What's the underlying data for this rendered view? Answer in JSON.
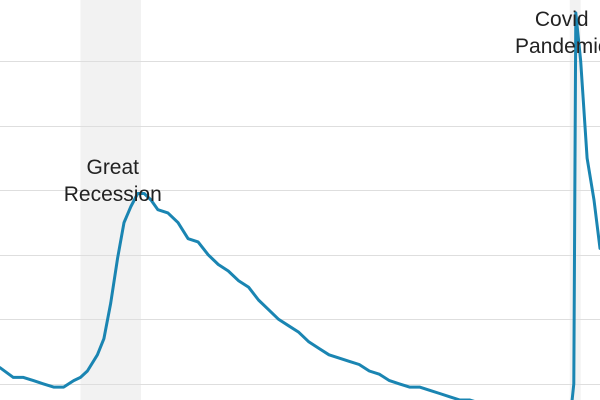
{
  "chart_data": {
    "type": "line",
    "title": "",
    "xlabel": "",
    "ylabel": "",
    "x_range": [
      2006.0,
      2020.9
    ],
    "ylim": [
      2.5,
      14.9
    ],
    "grid": true,
    "y_gridlines": [
      3,
      5,
      7,
      9,
      11,
      13,
      15
    ],
    "shaded_periods": [
      {
        "start": 2008.0,
        "end": 2009.5,
        "color": "#f2f2f2"
      },
      {
        "start": 2020.15,
        "end": 2020.42,
        "color": "#f2f2f2"
      }
    ],
    "annotations": [
      {
        "lines": [
          "Great",
          "Recession"
        ],
        "x": 2008.8,
        "y": 9.5
      },
      {
        "lines": [
          "Covid",
          "Pandemic"
        ],
        "x": 2019.95,
        "y": 14.1
      }
    ],
    "series": [
      {
        "color": "#1a85b2",
        "x": [
          2006.0,
          2006.33,
          2006.58,
          2006.83,
          2007.08,
          2007.33,
          2007.58,
          2007.83,
          2008.0,
          2008.17,
          2008.42,
          2008.58,
          2008.75,
          2008.92,
          2009.08,
          2009.25,
          2009.42,
          2009.58,
          2009.75,
          2009.92,
          2010.17,
          2010.42,
          2010.67,
          2010.92,
          2011.17,
          2011.42,
          2011.67,
          2011.92,
          2012.17,
          2012.42,
          2012.67,
          2012.92,
          2013.17,
          2013.42,
          2013.67,
          2013.92,
          2014.17,
          2014.42,
          2014.67,
          2014.92,
          2015.17,
          2015.42,
          2015.67,
          2015.92,
          2016.17,
          2016.42,
          2016.67,
          2016.92,
          2017.17,
          2017.42,
          2017.67,
          2017.92,
          2018.17,
          2018.42,
          2018.67,
          2018.92,
          2019.17,
          2019.42,
          2019.67,
          2019.92,
          2020.08,
          2020.17,
          2020.25,
          2020.3,
          2020.42,
          2020.58,
          2020.75,
          2020.9
        ],
        "y": [
          3.5,
          3.2,
          3.2,
          3.1,
          3.0,
          2.9,
          2.9,
          3.1,
          3.2,
          3.4,
          3.9,
          4.4,
          5.5,
          6.9,
          8.0,
          8.5,
          8.9,
          8.9,
          8.7,
          8.4,
          8.3,
          8.0,
          7.5,
          7.4,
          7.0,
          6.7,
          6.5,
          6.2,
          6.0,
          5.6,
          5.3,
          5.0,
          4.8,
          4.6,
          4.3,
          4.1,
          3.9,
          3.8,
          3.7,
          3.6,
          3.4,
          3.3,
          3.1,
          3.0,
          2.9,
          2.9,
          2.8,
          2.7,
          2.6,
          2.5,
          2.5,
          2.4,
          2.4,
          2.35,
          2.3,
          2.25,
          2.2,
          2.15,
          2.1,
          2.05,
          2.0,
          2.05,
          3.0,
          14.5,
          13.0,
          10.0,
          8.7,
          7.2
        ]
      }
    ]
  }
}
